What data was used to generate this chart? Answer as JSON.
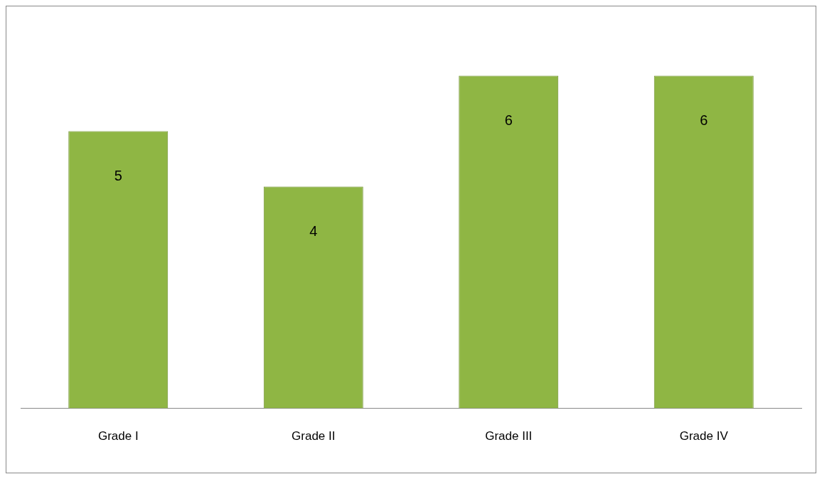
{
  "chart_data": {
    "type": "bar",
    "categories": [
      "Grade I",
      "Grade II",
      "Grade III",
      "Grade IV"
    ],
    "values": [
      5,
      4,
      6,
      6
    ],
    "color": "#8fb644",
    "data_labels": true,
    "legend": false
  }
}
